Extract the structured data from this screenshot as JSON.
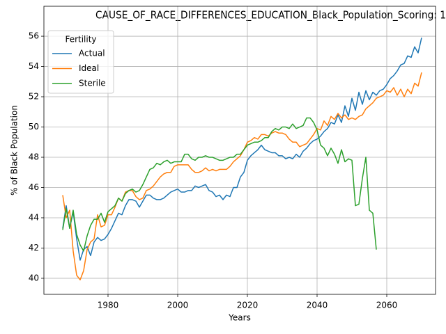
{
  "chart_data": {
    "type": "line",
    "title": "CAUSE_OF_RACE_DIFFERENCES_EDUCATION_Black_Population_Scoring: 1",
    "x_label": "Years",
    "y_label": "% of Black Population",
    "legend_title": "Fertility",
    "legend": "upper left",
    "grid": true,
    "xlim": [
      1961.6,
      2074
    ],
    "ylim": [
      38.94,
      57.98
    ],
    "xticks": [
      1980,
      2000,
      2020,
      2040,
      2060
    ],
    "yticks": [
      40,
      42,
      44,
      46,
      48,
      50,
      52,
      54,
      56
    ],
    "x": [
      1967,
      1968,
      1969,
      1970,
      1971,
      1972,
      1973,
      1974,
      1975,
      1976,
      1977,
      1978,
      1979,
      1980,
      1981,
      1982,
      1983,
      1984,
      1985,
      1986,
      1987,
      1988,
      1989,
      1990,
      1991,
      1992,
      1993,
      1994,
      1995,
      1996,
      1997,
      1998,
      1999,
      2000,
      2001,
      2002,
      2003,
      2004,
      2005,
      2006,
      2007,
      2008,
      2009,
      2010,
      2011,
      2012,
      2013,
      2014,
      2015,
      2016,
      2017,
      2018,
      2019,
      2020,
      2021,
      2022,
      2023,
      2024,
      2025,
      2026,
      2027,
      2028,
      2029,
      2030,
      2031,
      2032,
      2033,
      2034,
      2035,
      2036,
      2037,
      2038,
      2039,
      2040,
      2041,
      2042,
      2043,
      2044,
      2045,
      2046,
      2047,
      2048,
      2049,
      2050,
      2051,
      2052,
      2053,
      2054,
      2055,
      2056,
      2057,
      2058,
      2059,
      2060,
      2061,
      2062,
      2063,
      2064,
      2065,
      2066,
      2067,
      2068,
      2069,
      2070
    ],
    "series": [
      {
        "name": "Actual",
        "color": "#1f77b4",
        "values": [
          43.3,
          44.8,
          43.3,
          44.4,
          42.6,
          41.2,
          41.9,
          42.1,
          41.5,
          42.4,
          42.7,
          42.5,
          42.6,
          42.9,
          43.3,
          43.8,
          44.3,
          44.2,
          44.8,
          45.2,
          45.2,
          45.1,
          44.7,
          45.1,
          45.5,
          45.5,
          45.3,
          45.2,
          45.2,
          45.3,
          45.5,
          45.7,
          45.8,
          45.9,
          45.7,
          45.7,
          45.8,
          45.8,
          46.1,
          46.0,
          46.1,
          46.2,
          45.8,
          45.7,
          45.4,
          45.5,
          45.2,
          45.5,
          45.4,
          46.0,
          46.0,
          46.7,
          47.0,
          47.8,
          48.1,
          48.3,
          48.5,
          48.8,
          48.5,
          48.4,
          48.3,
          48.3,
          48.1,
          48.1,
          47.9,
          48.0,
          47.9,
          48.2,
          48.0,
          48.4,
          48.6,
          48.9,
          49.1,
          49.2,
          49.4,
          49.7,
          49.9,
          50.3,
          50.2,
          50.8,
          50.3,
          51.4,
          50.7,
          51.9,
          51.1,
          52.3,
          51.5,
          52.4,
          51.8,
          52.3,
          52.1,
          52.4,
          52.5,
          52.8,
          53.2,
          53.4,
          53.7,
          54.1,
          54.2,
          54.7,
          54.6,
          55.3,
          54.9,
          55.9
        ]
      },
      {
        "name": "Ideal",
        "color": "#ff7f0e",
        "values": [
          45.5,
          44.0,
          44.5,
          41.8,
          40.2,
          39.9,
          40.5,
          41.9,
          42.4,
          42.6,
          44.2,
          43.4,
          43.5,
          44.2,
          44.2,
          44.7,
          45.3,
          45.1,
          45.7,
          45.8,
          45.8,
          45.4,
          45.2,
          45.3,
          45.8,
          45.9,
          46.1,
          46.4,
          46.7,
          46.9,
          47.0,
          47.0,
          47.4,
          47.5,
          47.5,
          47.5,
          47.5,
          47.2,
          47.0,
          47.0,
          47.1,
          47.3,
          47.1,
          47.2,
          47.1,
          47.2,
          47.2,
          47.2,
          47.4,
          47.7,
          47.9,
          48.1,
          48.5,
          49.0,
          49.1,
          49.3,
          49.2,
          49.5,
          49.5,
          49.4,
          49.6,
          49.7,
          49.6,
          49.6,
          49.5,
          49.2,
          49.0,
          49.0,
          48.7,
          48.8,
          48.9,
          49.2,
          49.5,
          49.9,
          49.8,
          50.4,
          50.1,
          50.7,
          50.5,
          50.9,
          50.6,
          50.8,
          50.5,
          50.6,
          50.5,
          50.7,
          50.8,
          51.2,
          51.4,
          51.6,
          51.9,
          52.0,
          52.1,
          52.4,
          52.3,
          52.6,
          52.1,
          52.5,
          52.0,
          52.5,
          52.2,
          52.9,
          52.7,
          53.6
        ]
      },
      {
        "name": "Sterile",
        "color": "#2ca02c",
        "values": [
          43.2,
          44.6,
          43.3,
          44.5,
          42.9,
          42.2,
          41.8,
          42.8,
          43.5,
          43.9,
          43.9,
          44.3,
          43.7,
          44.4,
          44.6,
          44.8,
          45.3,
          45.1,
          45.6,
          45.8,
          45.9,
          45.7,
          45.8,
          46.2,
          46.7,
          47.2,
          47.3,
          47.6,
          47.5,
          47.7,
          47.8,
          47.6,
          47.7,
          47.7,
          47.7,
          48.2,
          48.2,
          47.9,
          47.8,
          48.0,
          48.0,
          48.1,
          48.0,
          48.0,
          47.9,
          47.8,
          47.8,
          47.9,
          48.0,
          48.0,
          48.2,
          48.2,
          48.5,
          48.8,
          48.9,
          49.0,
          49.0,
          49.1,
          49.3,
          49.3,
          49.7,
          49.9,
          49.8,
          50.0,
          50.0,
          49.9,
          50.2,
          49.9,
          50.0,
          50.1,
          50.6,
          50.6,
          50.3,
          49.8,
          48.8,
          48.6,
          48.1,
          48.6,
          48.2,
          47.6,
          48.5,
          47.7,
          47.9,
          47.8,
          44.8,
          44.9,
          46.6,
          48.0,
          44.5,
          44.3,
          41.9,
          null,
          null,
          null,
          null,
          null,
          null,
          null,
          null,
          null,
          null,
          null,
          null,
          null
        ]
      }
    ]
  }
}
